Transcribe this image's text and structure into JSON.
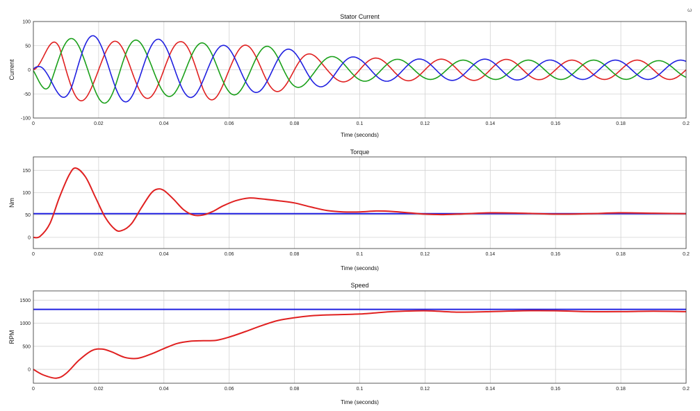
{
  "corner_mark": "ω",
  "chart_data": [
    {
      "type": "line",
      "title": "Stator Current",
      "xlabel": "Time (seconds)",
      "ylabel": "Current",
      "xlim": [
        0,
        0.2
      ],
      "ylim": [
        -100,
        100
      ],
      "x_ticks": [
        0,
        0.02,
        0.04,
        0.06,
        0.08,
        0.1,
        0.12,
        0.14,
        0.16,
        0.18,
        0.2
      ],
      "x_tick_labels": [
        "0",
        "0.02",
        "0.04",
        "0.06",
        "0.08",
        "0.1",
        "0.12",
        "0.14",
        "0.16",
        "0.18",
        "0.2"
      ],
      "y_ticks": [
        -100,
        -50,
        0,
        50,
        100
      ],
      "y_tick_labels": [
        "-100",
        "-50",
        "0",
        "50",
        "100"
      ],
      "grid": true,
      "series": [
        {
          "color": "#e02020",
          "x": [
            0,
            0.008,
            0.018,
            0.03,
            0.045,
            0.052,
            0.06,
            0.07,
            0.08,
            0.09,
            0.1,
            0.12,
            0.14,
            0.16,
            0.18,
            0.2
          ],
          "amplitude": [
            5,
            78,
            58,
            60,
            58,
            68,
            52,
            50,
            40,
            25,
            25,
            22,
            22,
            20,
            20,
            20
          ],
          "frequency": 50,
          "phase_deg": 0
        },
        {
          "color": "#1aa01a",
          "x": [
            0,
            0.005,
            0.016,
            0.025,
            0.035,
            0.045,
            0.055,
            0.065,
            0.075,
            0.085,
            0.1,
            0.12,
            0.14,
            0.16,
            0.18,
            0.2
          ],
          "amplitude": [
            2,
            66,
            64,
            72,
            56,
            55,
            56,
            50,
            48,
            30,
            24,
            20,
            20,
            20,
            20,
            18
          ],
          "frequency": 50,
          "phase_deg": 120
        },
        {
          "color": "#2020e0",
          "x": [
            0,
            0.004,
            0.012,
            0.022,
            0.035,
            0.045,
            0.055,
            0.065,
            0.075,
            0.085,
            0.1,
            0.12,
            0.14,
            0.16,
            0.18,
            0.2
          ],
          "amplitude": [
            2,
            30,
            75,
            68,
            65,
            60,
            52,
            48,
            45,
            38,
            25,
            22,
            22,
            20,
            20,
            20
          ],
          "frequency": 50,
          "phase_deg": 240
        }
      ]
    },
    {
      "type": "line",
      "title": "Torque",
      "xlabel": "Time (seconds)",
      "ylabel": "Nm",
      "xlim": [
        0,
        0.2
      ],
      "ylim": [
        -25,
        180
      ],
      "x_ticks": [
        0,
        0.02,
        0.04,
        0.06,
        0.08,
        0.1,
        0.12,
        0.14,
        0.16,
        0.18,
        0.2
      ],
      "x_tick_labels": [
        "0",
        "0.02",
        "0.04",
        "0.06",
        "0.08",
        "0.1",
        "0.12",
        "0.14",
        "0.16",
        "0.18",
        "0.2"
      ],
      "y_ticks": [
        0,
        50,
        100,
        150
      ],
      "y_tick_labels": [
        "0",
        "50",
        "100",
        "150"
      ],
      "grid": true,
      "series": [
        {
          "color": "#2020e0",
          "x": [
            0,
            0.2
          ],
          "y": [
            53,
            53
          ]
        },
        {
          "color": "#e02020",
          "x": [
            0,
            0.002,
            0.005,
            0.008,
            0.011,
            0.013,
            0.016,
            0.019,
            0.022,
            0.025,
            0.027,
            0.03,
            0.033,
            0.036,
            0.038,
            0.04,
            0.043,
            0.046,
            0.049,
            0.052,
            0.055,
            0.058,
            0.062,
            0.066,
            0.07,
            0.075,
            0.08,
            0.085,
            0.09,
            0.095,
            0.1,
            0.105,
            0.11,
            0.115,
            0.12,
            0.125,
            0.13,
            0.14,
            0.15,
            0.16,
            0.17,
            0.18,
            0.19,
            0.2
          ],
          "y": [
            0,
            2,
            30,
            90,
            140,
            155,
            135,
            90,
            45,
            18,
            15,
            30,
            65,
            98,
            108,
            105,
            85,
            62,
            50,
            50,
            58,
            70,
            82,
            88,
            86,
            82,
            77,
            68,
            60,
            57,
            57,
            59,
            58,
            55,
            52,
            51,
            52,
            55,
            54,
            52,
            53,
            55,
            54,
            53
          ]
        }
      ]
    },
    {
      "type": "line",
      "title": "Speed",
      "xlabel": "Time (seconds)",
      "ylabel": "RPM",
      "xlim": [
        0,
        0.2
      ],
      "ylim": [
        -300,
        1700
      ],
      "x_ticks": [
        0,
        0.02,
        0.04,
        0.06,
        0.08,
        0.1,
        0.12,
        0.14,
        0.16,
        0.18,
        0.2
      ],
      "x_tick_labels": [
        "0",
        "0.02",
        "0.04",
        "0.06",
        "0.08",
        "0.1",
        "0.12",
        "0.14",
        "0.16",
        "0.18",
        "0.2"
      ],
      "y_ticks": [
        0,
        500,
        1000,
        1500
      ],
      "y_tick_labels": [
        "0",
        "500",
        "1000",
        "1500"
      ],
      "grid": true,
      "series": [
        {
          "color": "#2020e0",
          "x": [
            0,
            0.2
          ],
          "y": [
            1300,
            1300
          ]
        },
        {
          "color": "#e02020",
          "x": [
            0,
            0.003,
            0.007,
            0.01,
            0.014,
            0.018,
            0.021,
            0.024,
            0.028,
            0.032,
            0.036,
            0.04,
            0.044,
            0.048,
            0.052,
            0.056,
            0.06,
            0.065,
            0.07,
            0.075,
            0.08,
            0.085,
            0.09,
            0.1,
            0.11,
            0.12,
            0.13,
            0.14,
            0.15,
            0.16,
            0.17,
            0.18,
            0.19,
            0.2
          ],
          "y": [
            0,
            -120,
            -190,
            -90,
            200,
            410,
            440,
            380,
            260,
            240,
            330,
            450,
            560,
            610,
            620,
            630,
            700,
            820,
            950,
            1060,
            1120,
            1160,
            1180,
            1200,
            1250,
            1270,
            1240,
            1250,
            1270,
            1270,
            1250,
            1250,
            1260,
            1250
          ]
        }
      ]
    }
  ]
}
